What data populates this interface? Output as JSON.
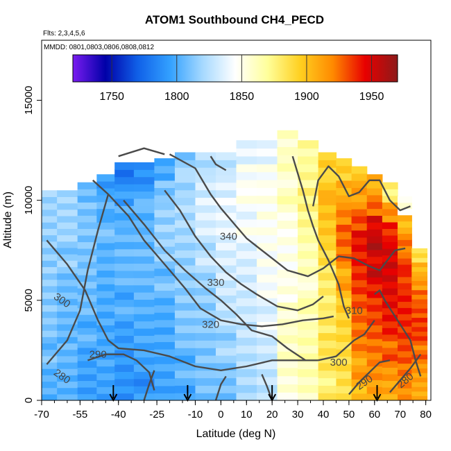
{
  "chart_data": {
    "type": "heatmap",
    "title": "ATOM1 Southbound CH4_PECD",
    "subtitle_flights": "Flts: 2,3,4,5,6",
    "subtitle_dates": "MMDD: 0801,0803,0806,0808,0812",
    "xlabel": "Latitude (deg N)",
    "ylabel": "Altitude (m)",
    "xlim": [
      -70,
      82
    ],
    "ylim": [
      0,
      18000
    ],
    "x_ticks": [
      -70,
      -55,
      -40,
      -25,
      -10,
      0,
      10,
      20,
      30,
      40,
      50,
      60,
      70,
      80
    ],
    "y_ticks": [
      0,
      5000,
      10000,
      15000
    ],
    "colorbar": {
      "min": 1720,
      "max": 1970,
      "ticks": [
        1750,
        1800,
        1850,
        1900,
        1950
      ],
      "colors": [
        "#7a1cf0",
        "#0000a8",
        "#1060e8",
        "#33a1ff",
        "#a6d9ff",
        "#ffffff",
        "#ffff9a",
        "#ffd020",
        "#ff8a00",
        "#e80000",
        "#8c1a1a"
      ]
    },
    "heat_columns": [
      {
        "lat": -68,
        "top": 10500,
        "values": [
          1805,
          1806,
          1808,
          1808,
          1810,
          1812,
          1815,
          1815,
          1818,
          1820,
          1822
        ]
      },
      {
        "lat": -60,
        "top": 10500,
        "values": [
          1800,
          1802,
          1805,
          1805,
          1808,
          1810,
          1812,
          1814,
          1815,
          1816,
          1818
        ]
      },
      {
        "lat": -52,
        "top": 10900,
        "values": [
          1796,
          1798,
          1800,
          1802,
          1804,
          1805,
          1808,
          1810,
          1812,
          1812,
          1810
        ]
      },
      {
        "lat": -45,
        "top": 11300,
        "values": [
          1792,
          1795,
          1796,
          1798,
          1800,
          1802,
          1805,
          1806,
          1806,
          1800,
          1790
        ]
      },
      {
        "lat": -38,
        "top": 11900,
        "values": [
          1790,
          1792,
          1795,
          1798,
          1800,
          1802,
          1803,
          1803,
          1800,
          1795,
          1780
        ]
      },
      {
        "lat": -30,
        "top": 11900,
        "values": [
          1790,
          1792,
          1795,
          1798,
          1802,
          1806,
          1808,
          1808,
          1806,
          1800,
          1785
        ]
      },
      {
        "lat": -22,
        "top": 12100,
        "values": [
          1795,
          1798,
          1800,
          1802,
          1805,
          1808,
          1812,
          1815,
          1815,
          1810,
          1800
        ]
      },
      {
        "lat": -14,
        "top": 12400,
        "values": [
          1800,
          1803,
          1806,
          1810,
          1812,
          1815,
          1818,
          1822,
          1825,
          1822,
          1815
        ]
      },
      {
        "lat": -6,
        "top": 12400,
        "values": [
          1808,
          1810,
          1812,
          1815,
          1818,
          1822,
          1826,
          1830,
          1832,
          1830,
          1822
        ]
      },
      {
        "lat": 2,
        "top": 12400,
        "values": [
          1812,
          1815,
          1818,
          1822,
          1826,
          1830,
          1834,
          1838,
          1840,
          1838,
          1830
        ]
      },
      {
        "lat": 10,
        "top": 13000,
        "values": [
          1818,
          1822,
          1826,
          1830,
          1833,
          1836,
          1840,
          1843,
          1845,
          1842,
          1836
        ]
      },
      {
        "lat": 18,
        "top": 13000,
        "values": [
          1828,
          1832,
          1835,
          1838,
          1840,
          1842,
          1845,
          1848,
          1850,
          1848,
          1842
        ]
      },
      {
        "lat": 26,
        "top": 13500,
        "values": [
          1850,
          1855,
          1858,
          1856,
          1852,
          1850,
          1852,
          1856,
          1860,
          1858,
          1855
        ]
      },
      {
        "lat": 34,
        "top": 13000,
        "values": [
          1862,
          1866,
          1868,
          1866,
          1860,
          1858,
          1862,
          1870,
          1875,
          1872,
          1870
        ]
      },
      {
        "lat": 42,
        "top": 12400,
        "values": [
          1878,
          1880,
          1882,
          1880,
          1878,
          1882,
          1890,
          1900,
          1905,
          1898,
          1890
        ]
      },
      {
        "lat": 48,
        "top": 12100,
        "values": [
          1885,
          1888,
          1890,
          1895,
          1900,
          1910,
          1920,
          1925,
          1918,
          1905,
          1895
        ]
      },
      {
        "lat": 54,
        "top": 11700,
        "values": [
          1905,
          1912,
          1918,
          1922,
          1928,
          1935,
          1940,
          1945,
          1935,
          1915,
          1900
        ]
      },
      {
        "lat": 60,
        "top": 11300,
        "values": [
          1910,
          1918,
          1925,
          1932,
          1938,
          1945,
          1950,
          1955,
          1945,
          1925,
          1905
        ]
      },
      {
        "lat": 66,
        "top": 10900,
        "values": [
          1912,
          1920,
          1928,
          1935,
          1940,
          1945,
          1950,
          1950,
          1940,
          1920,
          1880
        ]
      },
      {
        "lat": 72,
        "top": 10200,
        "values": [
          1915,
          1922,
          1930,
          1936,
          1940,
          1942,
          1938,
          1932,
          1920,
          1900,
          1850
        ]
      },
      {
        "lat": 77,
        "top": 7600,
        "values": [
          1910,
          1915,
          1920,
          1925,
          1930,
          1932,
          1930,
          1925,
          1915,
          1905,
          1890
        ]
      }
    ],
    "contours": [
      {
        "label": "280",
        "points": [
          [
            -68,
            1800
          ],
          [
            -60,
            3000
          ],
          [
            -55,
            4500
          ],
          [
            -52,
            6500
          ],
          [
            -48,
            8500
          ],
          [
            -44,
            10300
          ]
        ],
        "label_at": [
          -62,
          1200
        ],
        "label_angle": 35
      },
      {
        "label": "290",
        "points": [
          [
            -52,
            2000
          ],
          [
            -45,
            2300
          ],
          [
            -38,
            2300
          ],
          [
            -33,
            2000
          ],
          [
            -28,
            1400
          ],
          [
            -26,
            500
          ]
        ],
        "label_at": [
          -48,
          2300
        ],
        "label_angle": 0
      },
      {
        "label": "300",
        "points": [
          [
            -68,
            8000
          ],
          [
            -60,
            6800
          ],
          [
            -53,
            5500
          ],
          [
            -48,
            4000
          ],
          [
            -44,
            3000
          ],
          [
            -40,
            2600
          ],
          [
            -30,
            2500
          ],
          [
            -20,
            2200
          ],
          [
            -10,
            1700
          ],
          [
            0,
            1500
          ],
          [
            10,
            1700
          ],
          [
            20,
            2000
          ],
          [
            30,
            2000
          ],
          [
            38,
            2000
          ]
        ],
        "label_at": [
          -62,
          5000
        ],
        "label_angle": 35
      },
      {
        "label": "300",
        "points": [
          [
            38,
            2000
          ],
          [
            45,
            2200
          ],
          [
            52,
            3000
          ],
          [
            56,
            3300
          ],
          [
            60,
            4000
          ]
        ],
        "label_at": [
          46,
          1900
        ],
        "label_angle": 0
      },
      {
        "label": "310",
        "points": [
          [
            -50,
            11000
          ],
          [
            -44,
            10300
          ],
          [
            -36,
            9200
          ],
          [
            -30,
            8000
          ],
          [
            -22,
            6800
          ],
          [
            -14,
            5600
          ],
          [
            -8,
            4600
          ],
          [
            0,
            4000
          ],
          [
            8,
            3800
          ],
          [
            16,
            3700
          ],
          [
            24,
            3800
          ],
          [
            32,
            4000
          ],
          [
            40,
            4100
          ],
          [
            44,
            4200
          ]
        ],
        "label_at": [
          52,
          4500
        ],
        "label_angle": 0
      },
      {
        "label": "320",
        "points": [
          [
            -38,
            10000
          ],
          [
            -30,
            8800
          ],
          [
            -22,
            7500
          ],
          [
            -14,
            6500
          ],
          [
            -6,
            5600
          ],
          [
            0,
            5000
          ],
          [
            6,
            4300
          ],
          [
            12,
            3500
          ],
          [
            20,
            3200
          ],
          [
            26,
            2600
          ],
          [
            33,
            2000
          ]
        ],
        "label_at": [
          -4,
          3800
        ],
        "label_angle": 0
      },
      {
        "label": "330",
        "points": [
          [
            -22,
            10500
          ],
          [
            -16,
            9500
          ],
          [
            -10,
            8200
          ],
          [
            -4,
            7200
          ],
          [
            2,
            6400
          ],
          [
            8,
            5800
          ],
          [
            14,
            5300
          ],
          [
            22,
            4700
          ],
          [
            30,
            4500
          ],
          [
            36,
            4800
          ],
          [
            40,
            5200
          ]
        ],
        "label_at": [
          -2,
          5900
        ],
        "label_angle": 0
      },
      {
        "label": "340",
        "points": [
          [
            -20,
            12300
          ],
          [
            -10,
            11600
          ],
          [
            -4,
            10300
          ],
          [
            0,
            9600
          ],
          [
            6,
            8700
          ],
          [
            10,
            8100
          ],
          [
            14,
            7700
          ],
          [
            20,
            7100
          ],
          [
            26,
            6500
          ],
          [
            34,
            6200
          ],
          [
            40,
            6600
          ],
          [
            46,
            7200
          ],
          [
            52,
            7100
          ],
          [
            58,
            6700
          ],
          [
            62,
            6500
          ],
          [
            68,
            7500
          ],
          [
            72,
            7600
          ]
        ],
        "label_at": [
          3,
          8200
        ],
        "label_angle": 0
      },
      {
        "label": "",
        "points": [
          [
            28,
            12200
          ],
          [
            32,
            10500
          ],
          [
            34,
            9500
          ],
          [
            36,
            8700
          ],
          [
            38,
            8000
          ],
          [
            42,
            7000
          ],
          [
            46,
            5800
          ],
          [
            48,
            4700
          ],
          [
            50,
            4100
          ]
        ],
        "label_at": null,
        "label_angle": 0
      },
      {
        "label": "",
        "points": [
          [
            36,
            9700
          ],
          [
            38,
            11000
          ],
          [
            42,
            11700
          ],
          [
            46,
            11200
          ],
          [
            50,
            10200
          ],
          [
            54,
            10400
          ],
          [
            58,
            11000
          ],
          [
            62,
            11000
          ],
          [
            66,
            10000
          ],
          [
            70,
            9500
          ],
          [
            74,
            9700
          ]
        ],
        "label_at": null,
        "label_angle": 0
      },
      {
        "label": "",
        "points": [
          [
            60,
            5300
          ],
          [
            62,
            5500
          ],
          [
            64,
            5000
          ],
          [
            66,
            4600
          ],
          [
            70,
            3800
          ],
          [
            74,
            3000
          ],
          [
            76,
            2000
          ],
          [
            78,
            1200
          ]
        ],
        "label_at": null,
        "label_angle": 0
      },
      {
        "label": "",
        "points": [
          [
            -22,
            12300
          ],
          [
            -30,
            12600
          ],
          [
            -40,
            12200
          ]
        ],
        "label_at": null,
        "label_angle": 0
      },
      {
        "label": "",
        "points": [
          [
            -4,
            12200
          ],
          [
            -2,
            11800
          ],
          [
            2,
            11500
          ]
        ],
        "label_at": null,
        "label_angle": 0
      },
      {
        "label": "290",
        "points": [
          [
            50,
            300
          ],
          [
            54,
            900
          ],
          [
            58,
            1400
          ],
          [
            62,
            1900
          ],
          [
            66,
            2000
          ]
        ],
        "label_at": [
          56,
          900
        ],
        "label_angle": -35
      },
      {
        "label": "280",
        "points": [
          [
            66,
            400
          ],
          [
            70,
            1000
          ],
          [
            74,
            1600
          ],
          [
            78,
            2300
          ]
        ],
        "label_at": [
          72,
          1000
        ],
        "label_angle": -40
      },
      {
        "label": "",
        "points": [
          [
            -30,
            0
          ],
          [
            -28,
            800
          ],
          [
            -26,
            1500
          ]
        ],
        "label_at": null,
        "label_angle": 0
      },
      {
        "label": "",
        "points": [
          [
            -2,
            0
          ],
          [
            0,
            800
          ],
          [
            2,
            1200
          ]
        ],
        "label_at": null,
        "label_angle": 0
      },
      {
        "label": "",
        "points": [
          [
            20,
            0
          ],
          [
            18,
            700
          ],
          [
            16,
            1300
          ]
        ],
        "label_at": null,
        "label_angle": 0
      }
    ],
    "arrows_lat": [
      -42,
      -13,
      20,
      61
    ],
    "grid": false
  }
}
